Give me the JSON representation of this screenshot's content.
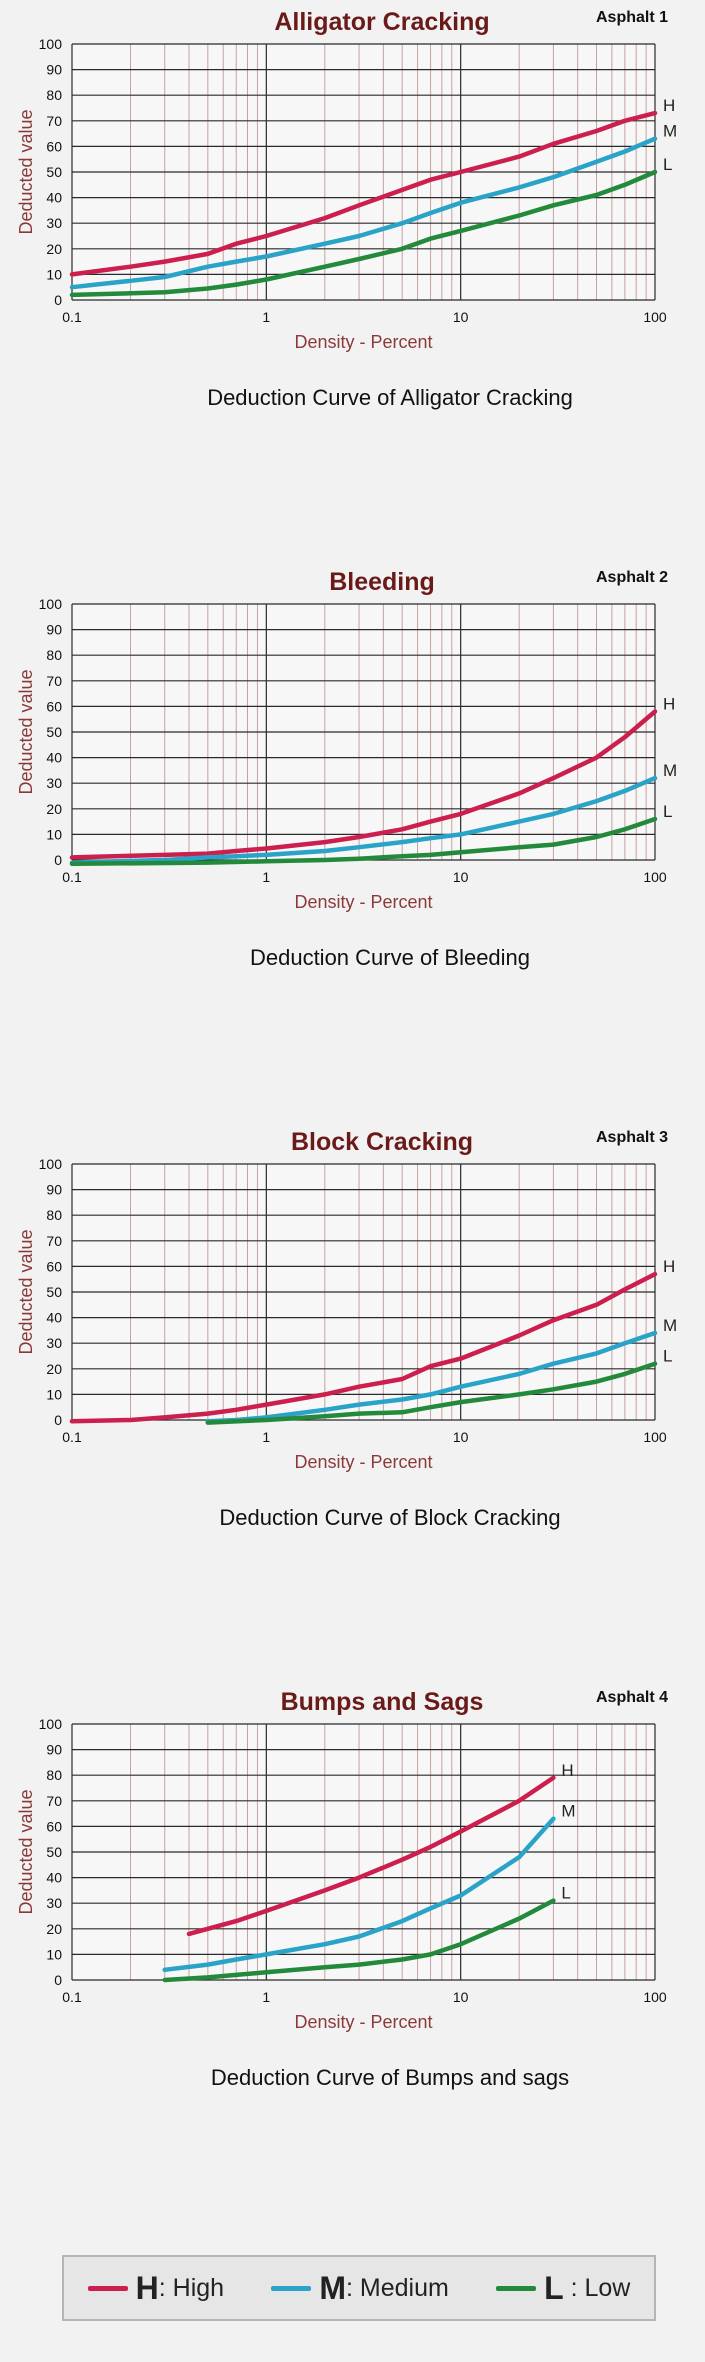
{
  "colors": {
    "high": "#cc1f4d",
    "medium": "#2aa3c8",
    "low": "#238a3c",
    "title": "#6b1a1a",
    "axis_label": "#8b3a3a",
    "grid_major": "#2a2a2a",
    "grid_minor": "#c8a0a0"
  },
  "chart_data": [
    {
      "type": "line",
      "title": "Alligator Cracking",
      "tag": "Asphalt 1",
      "caption": "Deduction Curve of Alligator Cracking",
      "xlabel": "Density - Percent",
      "ylabel": "Deducted value",
      "xscale": "log",
      "xlim": [
        0.1,
        100
      ],
      "ylim": [
        0,
        100
      ],
      "xticks": [
        "0.1",
        "1",
        "10",
        "100"
      ],
      "yticks": [
        "0",
        "10",
        "20",
        "30",
        "40",
        "50",
        "60",
        "70",
        "80",
        "90",
        "100"
      ],
      "series": [
        {
          "name": "H",
          "color_key": "high",
          "points": [
            [
              0.1,
              10
            ],
            [
              0.2,
              13
            ],
            [
              0.3,
              15
            ],
            [
              0.5,
              18
            ],
            [
              0.7,
              22
            ],
            [
              1,
              25
            ],
            [
              2,
              32
            ],
            [
              3,
              37
            ],
            [
              5,
              43
            ],
            [
              7,
              47
            ],
            [
              10,
              50
            ],
            [
              20,
              56
            ],
            [
              30,
              61
            ],
            [
              50,
              66
            ],
            [
              70,
              70
            ],
            [
              100,
              73
            ]
          ]
        },
        {
          "name": "M",
          "color_key": "medium",
          "points": [
            [
              0.1,
              5
            ],
            [
              0.2,
              7.5
            ],
            [
              0.3,
              9
            ],
            [
              0.5,
              13
            ],
            [
              0.7,
              15
            ],
            [
              1,
              17
            ],
            [
              2,
              22
            ],
            [
              3,
              25
            ],
            [
              5,
              30
            ],
            [
              7,
              34
            ],
            [
              10,
              38
            ],
            [
              20,
              44
            ],
            [
              30,
              48
            ],
            [
              50,
              54
            ],
            [
              70,
              58
            ],
            [
              100,
              63
            ]
          ]
        },
        {
          "name": "L",
          "color_key": "low",
          "points": [
            [
              0.1,
              2
            ],
            [
              0.3,
              3
            ],
            [
              0.5,
              4.5
            ],
            [
              0.7,
              6
            ],
            [
              1,
              8
            ],
            [
              2,
              13
            ],
            [
              3,
              16
            ],
            [
              5,
              20
            ],
            [
              7,
              24
            ],
            [
              10,
              27
            ],
            [
              20,
              33
            ],
            [
              30,
              37
            ],
            [
              50,
              41
            ],
            [
              70,
              45
            ],
            [
              100,
              50
            ]
          ]
        }
      ]
    },
    {
      "type": "line",
      "title": "Bleeding",
      "tag": "Asphalt 2",
      "caption": "Deduction Curve of Bleeding",
      "xlabel": "Density - Percent",
      "ylabel": "Deducted value",
      "xscale": "log",
      "xlim": [
        0.1,
        100
      ],
      "ylim": [
        0,
        100
      ],
      "xticks": [
        "0.1",
        "1",
        "10",
        "100"
      ],
      "yticks": [
        "0",
        "10",
        "20",
        "30",
        "40",
        "50",
        "60",
        "70",
        "80",
        "90",
        "100"
      ],
      "series": [
        {
          "name": "H",
          "color_key": "high",
          "points": [
            [
              0.1,
              1
            ],
            [
              0.3,
              2
            ],
            [
              0.5,
              2.5
            ],
            [
              0.7,
              3.5
            ],
            [
              1,
              4.5
            ],
            [
              2,
              7
            ],
            [
              3,
              9
            ],
            [
              5,
              12
            ],
            [
              7,
              15
            ],
            [
              10,
              18
            ],
            [
              20,
              26
            ],
            [
              30,
              32
            ],
            [
              50,
              40
            ],
            [
              70,
              48
            ],
            [
              100,
              58
            ]
          ]
        },
        {
          "name": "M",
          "color_key": "medium",
          "points": [
            [
              0.1,
              -1
            ],
            [
              0.3,
              0
            ],
            [
              0.5,
              1
            ],
            [
              0.7,
              1.5
            ],
            [
              1,
              2
            ],
            [
              2,
              3.5
            ],
            [
              3,
              5
            ],
            [
              5,
              7
            ],
            [
              7,
              8.5
            ],
            [
              10,
              10
            ],
            [
              20,
              15
            ],
            [
              30,
              18
            ],
            [
              50,
              23
            ],
            [
              70,
              27
            ],
            [
              100,
              32
            ]
          ]
        },
        {
          "name": "L",
          "color_key": "low",
          "points": [
            [
              0.1,
              -1.5
            ],
            [
              0.5,
              -1
            ],
            [
              1,
              -0.5
            ],
            [
              2,
              0
            ],
            [
              3,
              0.5
            ],
            [
              5,
              1.5
            ],
            [
              7,
              2
            ],
            [
              10,
              3
            ],
            [
              20,
              5
            ],
            [
              30,
              6
            ],
            [
              50,
              9
            ],
            [
              70,
              12
            ],
            [
              100,
              16
            ]
          ]
        }
      ]
    },
    {
      "type": "line",
      "title": "Block Cracking",
      "tag": "Asphalt 3",
      "caption": "Deduction Curve of Block Cracking",
      "xlabel": "Density - Percent",
      "ylabel": "Deducted value",
      "xscale": "log",
      "xlim": [
        0.1,
        100
      ],
      "ylim": [
        0,
        100
      ],
      "xticks": [
        "0.1",
        "1",
        "10",
        "100"
      ],
      "yticks": [
        "0",
        "10",
        "20",
        "30",
        "40",
        "50",
        "60",
        "70",
        "80",
        "90",
        "100"
      ],
      "series": [
        {
          "name": "H",
          "color_key": "high",
          "points": [
            [
              0.1,
              -0.5
            ],
            [
              0.2,
              0
            ],
            [
              0.3,
              1
            ],
            [
              0.5,
              2.5
            ],
            [
              0.7,
              4
            ],
            [
              1,
              6
            ],
            [
              2,
              10
            ],
            [
              3,
              13
            ],
            [
              5,
              16
            ],
            [
              7,
              21
            ],
            [
              10,
              24
            ],
            [
              20,
              33
            ],
            [
              30,
              39
            ],
            [
              50,
              45
            ],
            [
              70,
              51
            ],
            [
              100,
              57
            ]
          ]
        },
        {
          "name": "M",
          "color_key": "medium",
          "points": [
            [
              0.5,
              -0.5
            ],
            [
              0.7,
              0
            ],
            [
              1,
              1
            ],
            [
              2,
              4
            ],
            [
              3,
              6
            ],
            [
              5,
              8
            ],
            [
              7,
              10
            ],
            [
              10,
              13
            ],
            [
              20,
              18
            ],
            [
              30,
              22
            ],
            [
              50,
              26
            ],
            [
              70,
              30
            ],
            [
              100,
              34
            ]
          ]
        },
        {
          "name": "L",
          "color_key": "low",
          "points": [
            [
              0.5,
              -1
            ],
            [
              1,
              0
            ],
            [
              2,
              1.5
            ],
            [
              3,
              2.5
            ],
            [
              5,
              3
            ],
            [
              7,
              5
            ],
            [
              10,
              7
            ],
            [
              20,
              10
            ],
            [
              30,
              12
            ],
            [
              50,
              15
            ],
            [
              70,
              18
            ],
            [
              100,
              22
            ]
          ]
        }
      ]
    },
    {
      "type": "line",
      "title": "Bumps and Sags",
      "tag": "Asphalt 4",
      "caption": "Deduction Curve of Bumps and sags",
      "xlabel": "Density - Percent",
      "ylabel": "Deducted value",
      "xscale": "log",
      "xlim": [
        0.1,
        100
      ],
      "ylim": [
        0,
        100
      ],
      "xticks": [
        "0.1",
        "1",
        "10",
        "100"
      ],
      "yticks": [
        "0",
        "10",
        "20",
        "30",
        "40",
        "50",
        "60",
        "70",
        "80",
        "90",
        "100"
      ],
      "series": [
        {
          "name": "H",
          "color_key": "high",
          "points": [
            [
              0.4,
              18
            ],
            [
              0.5,
              20
            ],
            [
              0.7,
              23
            ],
            [
              1,
              27
            ],
            [
              2,
              35
            ],
            [
              3,
              40
            ],
            [
              5,
              47
            ],
            [
              7,
              52
            ],
            [
              10,
              58
            ],
            [
              20,
              70
            ],
            [
              30,
              79
            ]
          ]
        },
        {
          "name": "M",
          "color_key": "medium",
          "points": [
            [
              0.3,
              4
            ],
            [
              0.5,
              6
            ],
            [
              0.7,
              8
            ],
            [
              1,
              10
            ],
            [
              2,
              14
            ],
            [
              3,
              17
            ],
            [
              5,
              23
            ],
            [
              7,
              28
            ],
            [
              10,
              33
            ],
            [
              20,
              48
            ],
            [
              30,
              63
            ]
          ]
        },
        {
          "name": "L",
          "color_key": "low",
          "points": [
            [
              0.3,
              0
            ],
            [
              0.5,
              1
            ],
            [
              0.7,
              2
            ],
            [
              1,
              3
            ],
            [
              2,
              5
            ],
            [
              3,
              6
            ],
            [
              5,
              8
            ],
            [
              7,
              10
            ],
            [
              10,
              14
            ],
            [
              20,
              24
            ],
            [
              30,
              31
            ]
          ]
        }
      ]
    }
  ],
  "legend": [
    {
      "key": "H",
      "label": ": High",
      "color_key": "high"
    },
    {
      "key": "M",
      "label": ": Medium",
      "color_key": "medium"
    },
    {
      "key": "L",
      "label": " : Low",
      "color_key": "low"
    }
  ]
}
